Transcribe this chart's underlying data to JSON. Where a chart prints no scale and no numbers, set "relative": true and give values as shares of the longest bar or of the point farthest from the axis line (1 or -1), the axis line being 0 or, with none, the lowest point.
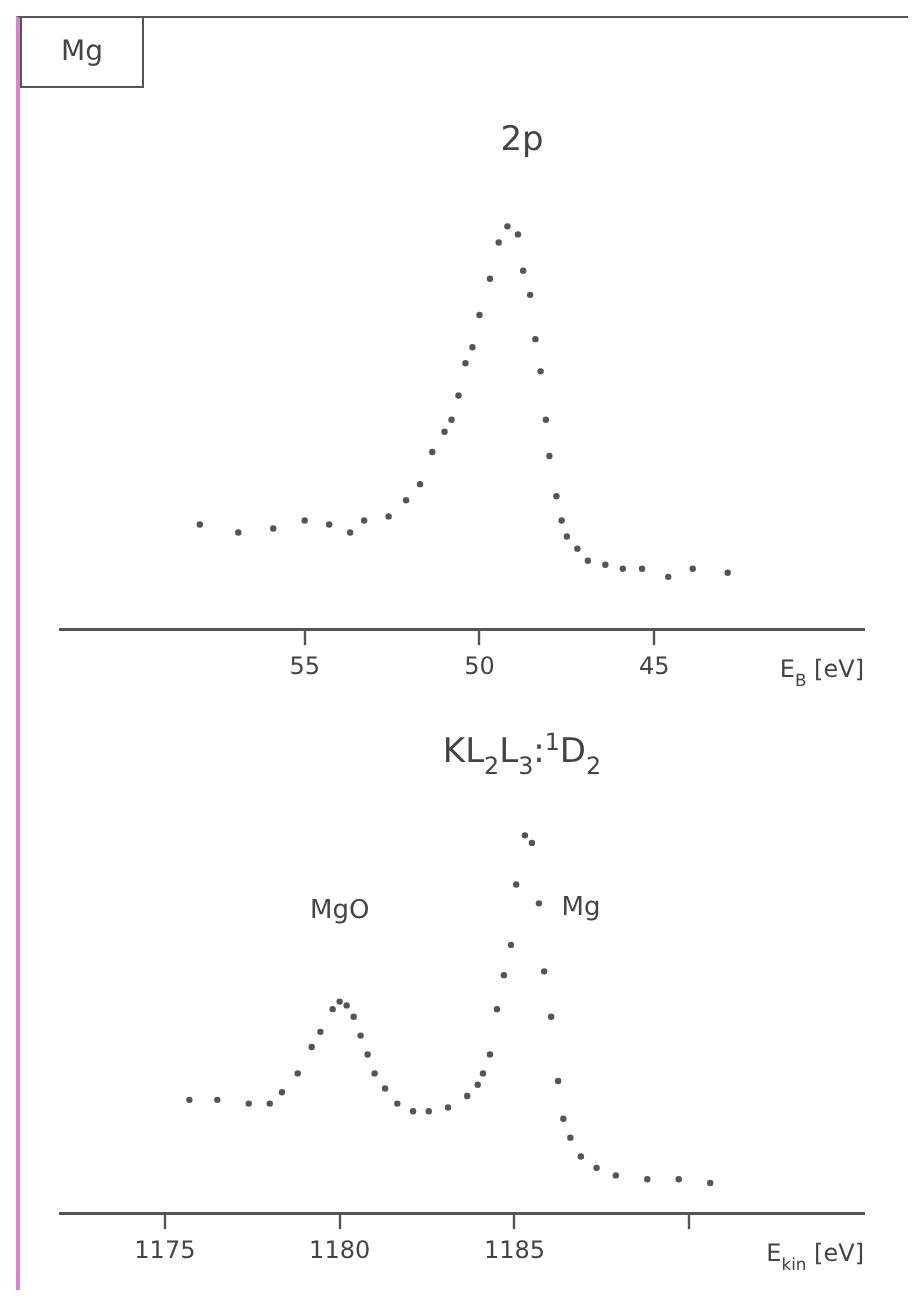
{
  "chart_data": [
    {
      "type": "scatter",
      "title": "2p",
      "xlabel": "E$_{B}$ [eV]",
      "relative": true,
      "marker": "circle",
      "grid": false,
      "legend": false,
      "tick_labels": "x",
      "xlim": [
        62,
        39
      ],
      "xticks": [
        55,
        50,
        45
      ],
      "annotations": [
        "Mg"
      ],
      "series": [
        {
          "color": "#555555",
          "x": [
            58.0,
            56.9,
            55.9,
            55.0,
            54.3,
            53.7,
            53.3,
            52.6,
            52.1,
            51.7,
            51.35,
            51.0,
            50.8,
            50.6,
            50.4,
            50.2,
            50.0,
            49.7,
            49.45,
            49.2,
            48.9,
            48.75,
            48.55,
            48.4,
            48.25,
            48.1,
            48.0,
            47.8,
            47.65,
            47.5,
            47.2,
            46.9,
            46.4,
            45.9,
            45.35,
            44.6,
            43.9,
            42.9
          ],
          "values": [
            0.26,
            0.24,
            0.25,
            0.27,
            0.26,
            0.24,
            0.27,
            0.28,
            0.32,
            0.36,
            0.44,
            0.49,
            0.52,
            0.58,
            0.66,
            0.7,
            0.78,
            0.87,
            0.96,
            1.0,
            0.98,
            0.89,
            0.83,
            0.72,
            0.64,
            0.52,
            0.43,
            0.33,
            0.27,
            0.23,
            0.2,
            0.17,
            0.16,
            0.15,
            0.15,
            0.13,
            0.15,
            0.14
          ]
        }
      ]
    },
    {
      "type": "scatter",
      "title": "KL$_{2}$L$_{3}$:$^{1}$D$_{2}$",
      "xlabel": "E$_{kin}$ [eV]",
      "relative": true,
      "marker": "circle",
      "grid": false,
      "legend": false,
      "tick_labels": "x",
      "xlim": [
        1172,
        1195
      ],
      "xticks": [
        1175,
        1180,
        1185,
        {
          "value": 1190,
          "label": null
        }
      ],
      "annotations": [
        "MgO",
        "Mg"
      ],
      "series": [
        {
          "color": "#555555",
          "x": [
            1175.7,
            1176.5,
            1177.4,
            1178.0,
            1178.35,
            1178.8,
            1179.2,
            1179.45,
            1179.8,
            1180.0,
            1180.2,
            1180.4,
            1180.6,
            1180.8,
            1181.0,
            1181.3,
            1181.65,
            1182.1,
            1182.55,
            1183.1,
            1183.65,
            1183.95,
            1184.1,
            1184.3,
            1184.5,
            1184.7,
            1184.9,
            1185.05,
            1185.3,
            1185.5,
            1185.7,
            1185.85,
            1186.05,
            1186.25,
            1186.4,
            1186.6,
            1186.9,
            1187.35,
            1187.9,
            1188.8,
            1189.7,
            1190.6
          ],
          "values": [
            0.3,
            0.3,
            0.29,
            0.29,
            0.32,
            0.37,
            0.44,
            0.48,
            0.54,
            0.56,
            0.55,
            0.52,
            0.47,
            0.42,
            0.37,
            0.33,
            0.29,
            0.27,
            0.27,
            0.28,
            0.31,
            0.34,
            0.37,
            0.42,
            0.54,
            0.63,
            0.71,
            0.87,
            1.0,
            0.98,
            0.82,
            0.64,
            0.52,
            0.35,
            0.25,
            0.2,
            0.15,
            0.12,
            0.1,
            0.09,
            0.09,
            0.08
          ]
        }
      ]
    }
  ]
}
